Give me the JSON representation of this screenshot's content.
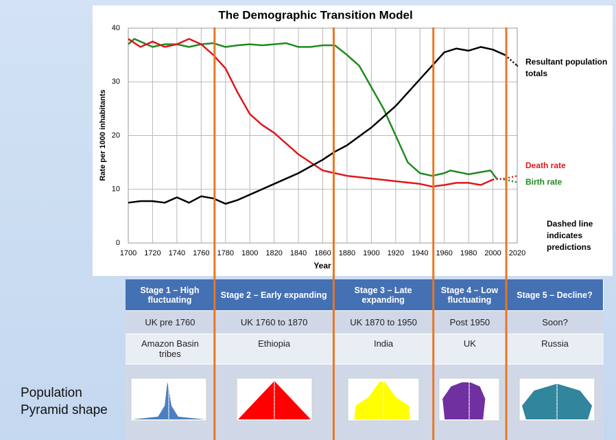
{
  "chart_data": {
    "type": "line",
    "title": "The Demographic Transition Model",
    "ylabel": "Rate per 1000 inhabitants",
    "xlabel": "Year",
    "xlim": [
      1700,
      2020
    ],
    "xticks": [
      1700,
      1720,
      1740,
      1760,
      1780,
      1800,
      1820,
      1840,
      1860,
      1880,
      1900,
      1920,
      1940,
      1960,
      1980,
      2000,
      2020
    ],
    "ylim": [
      0,
      40
    ],
    "yticks": [
      0,
      10,
      20,
      30,
      40
    ],
    "grid": true,
    "stage_boundaries": [
      1771,
      1869,
      1951,
      2011
    ],
    "series": [
      {
        "name": "Birth rate",
        "color": "#1f8a1f",
        "x": [
          1700,
          1705,
          1710,
          1720,
          1730,
          1740,
          1750,
          1760,
          1770,
          1780,
          1790,
          1800,
          1810,
          1820,
          1830,
          1840,
          1850,
          1860,
          1870,
          1880,
          1890,
          1900,
          1910,
          1920,
          1930,
          1940,
          1950,
          1960,
          1965,
          1980,
          1990,
          1998,
          2003
        ],
        "values": [
          37,
          38,
          37.5,
          36.5,
          37,
          37,
          36.5,
          37,
          37.2,
          36.5,
          36.8,
          37,
          36.8,
          37,
          37.2,
          36.5,
          36.5,
          36.8,
          36.8,
          35,
          33,
          29,
          25,
          20,
          15,
          13,
          12.5,
          13,
          13.5,
          12.8,
          13.2,
          13.5,
          12
        ],
        "pred_x": [
          2010,
          2020
        ],
        "pred_values": [
          11.8,
          11.3
        ]
      },
      {
        "name": "Death rate",
        "color": "#e0161b",
        "x": [
          1700,
          1710,
          1720,
          1730,
          1740,
          1750,
          1760,
          1770,
          1780,
          1790,
          1800,
          1810,
          1820,
          1830,
          1840,
          1850,
          1860,
          1870,
          1880,
          1900,
          1920,
          1940,
          1950,
          1960,
          1970,
          1980,
          1990,
          2000
        ],
        "values": [
          38,
          36.5,
          37.5,
          36.5,
          37,
          38,
          37,
          35,
          32.5,
          28,
          24,
          22,
          20.5,
          18.5,
          16.5,
          15,
          13.5,
          13,
          12.5,
          12,
          11.5,
          11,
          10.5,
          10.8,
          11.2,
          11.2,
          10.8,
          11.8
        ],
        "pred_x": [
          2010,
          2020
        ],
        "pred_values": [
          12,
          12.5
        ]
      },
      {
        "name": "Resultant population totals",
        "color": "#000000",
        "x": [
          1700,
          1710,
          1720,
          1730,
          1740,
          1750,
          1760,
          1770,
          1780,
          1790,
          1800,
          1820,
          1840,
          1860,
          1870,
          1880,
          1900,
          1920,
          1940,
          1950,
          1960,
          1970,
          1980,
          1990,
          2000,
          2010
        ],
        "values": [
          7.5,
          7.8,
          7.8,
          7.5,
          8.5,
          7.5,
          8.7,
          8.3,
          7.3,
          8,
          9,
          11,
          13,
          15.5,
          17,
          18.2,
          21.5,
          25.5,
          30.5,
          33,
          35.5,
          36.2,
          35.8,
          36.5,
          36,
          35
        ],
        "pred_x": [
          2020
        ],
        "pred_values": [
          33
        ]
      }
    ],
    "annotation": "Dashed line indicates predictions"
  },
  "table": {
    "header": [
      "Stage 1 – High fluctuating",
      "Stage 2 – Early expanding",
      "Stage 3 – Late expanding",
      "Stage 4 – Low fluctuating",
      "Stage 5 – Decline?"
    ],
    "rows": [
      [
        "UK pre 1760",
        "UK 1760 to 1870",
        "UK  1870 to 1950",
        "Post 1950",
        "Soon?"
      ],
      [
        "Amazon Basin tribes",
        "Ethiopia",
        "India",
        "UK",
        "Russia"
      ]
    ],
    "pyramid_label": "Population Pyramid shape"
  }
}
